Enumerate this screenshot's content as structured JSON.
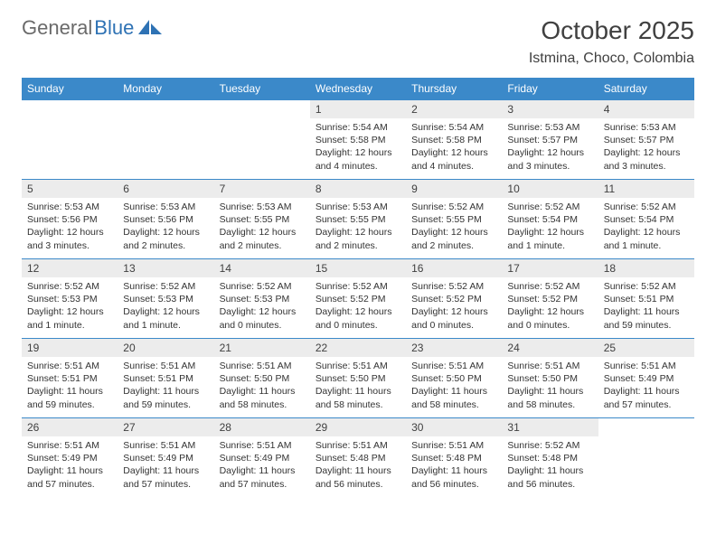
{
  "logo": {
    "text1": "General",
    "text2": "Blue"
  },
  "title": "October 2025",
  "location": "Istmina, Choco, Colombia",
  "colors": {
    "header_bg": "#3b89c9",
    "header_text": "#ffffff",
    "daynum_bg": "#ececec",
    "row_border": "#3b89c9",
    "text": "#333333",
    "title_text": "#404040",
    "logo_gray": "#6a6a6a",
    "logo_blue": "#2e72b4"
  },
  "weekdays": [
    "Sunday",
    "Monday",
    "Tuesday",
    "Wednesday",
    "Thursday",
    "Friday",
    "Saturday"
  ],
  "weeks": [
    [
      {
        "n": "",
        "sunrise": "",
        "sunset": "",
        "daylight": ""
      },
      {
        "n": "",
        "sunrise": "",
        "sunset": "",
        "daylight": ""
      },
      {
        "n": "",
        "sunrise": "",
        "sunset": "",
        "daylight": ""
      },
      {
        "n": "1",
        "sunrise": "Sunrise: 5:54 AM",
        "sunset": "Sunset: 5:58 PM",
        "daylight": "Daylight: 12 hours and 4 minutes."
      },
      {
        "n": "2",
        "sunrise": "Sunrise: 5:54 AM",
        "sunset": "Sunset: 5:58 PM",
        "daylight": "Daylight: 12 hours and 4 minutes."
      },
      {
        "n": "3",
        "sunrise": "Sunrise: 5:53 AM",
        "sunset": "Sunset: 5:57 PM",
        "daylight": "Daylight: 12 hours and 3 minutes."
      },
      {
        "n": "4",
        "sunrise": "Sunrise: 5:53 AM",
        "sunset": "Sunset: 5:57 PM",
        "daylight": "Daylight: 12 hours and 3 minutes."
      }
    ],
    [
      {
        "n": "5",
        "sunrise": "Sunrise: 5:53 AM",
        "sunset": "Sunset: 5:56 PM",
        "daylight": "Daylight: 12 hours and 3 minutes."
      },
      {
        "n": "6",
        "sunrise": "Sunrise: 5:53 AM",
        "sunset": "Sunset: 5:56 PM",
        "daylight": "Daylight: 12 hours and 2 minutes."
      },
      {
        "n": "7",
        "sunrise": "Sunrise: 5:53 AM",
        "sunset": "Sunset: 5:55 PM",
        "daylight": "Daylight: 12 hours and 2 minutes."
      },
      {
        "n": "8",
        "sunrise": "Sunrise: 5:53 AM",
        "sunset": "Sunset: 5:55 PM",
        "daylight": "Daylight: 12 hours and 2 minutes."
      },
      {
        "n": "9",
        "sunrise": "Sunrise: 5:52 AM",
        "sunset": "Sunset: 5:55 PM",
        "daylight": "Daylight: 12 hours and 2 minutes."
      },
      {
        "n": "10",
        "sunrise": "Sunrise: 5:52 AM",
        "sunset": "Sunset: 5:54 PM",
        "daylight": "Daylight: 12 hours and 1 minute."
      },
      {
        "n": "11",
        "sunrise": "Sunrise: 5:52 AM",
        "sunset": "Sunset: 5:54 PM",
        "daylight": "Daylight: 12 hours and 1 minute."
      }
    ],
    [
      {
        "n": "12",
        "sunrise": "Sunrise: 5:52 AM",
        "sunset": "Sunset: 5:53 PM",
        "daylight": "Daylight: 12 hours and 1 minute."
      },
      {
        "n": "13",
        "sunrise": "Sunrise: 5:52 AM",
        "sunset": "Sunset: 5:53 PM",
        "daylight": "Daylight: 12 hours and 1 minute."
      },
      {
        "n": "14",
        "sunrise": "Sunrise: 5:52 AM",
        "sunset": "Sunset: 5:53 PM",
        "daylight": "Daylight: 12 hours and 0 minutes."
      },
      {
        "n": "15",
        "sunrise": "Sunrise: 5:52 AM",
        "sunset": "Sunset: 5:52 PM",
        "daylight": "Daylight: 12 hours and 0 minutes."
      },
      {
        "n": "16",
        "sunrise": "Sunrise: 5:52 AM",
        "sunset": "Sunset: 5:52 PM",
        "daylight": "Daylight: 12 hours and 0 minutes."
      },
      {
        "n": "17",
        "sunrise": "Sunrise: 5:52 AM",
        "sunset": "Sunset: 5:52 PM",
        "daylight": "Daylight: 12 hours and 0 minutes."
      },
      {
        "n": "18",
        "sunrise": "Sunrise: 5:52 AM",
        "sunset": "Sunset: 5:51 PM",
        "daylight": "Daylight: 11 hours and 59 minutes."
      }
    ],
    [
      {
        "n": "19",
        "sunrise": "Sunrise: 5:51 AM",
        "sunset": "Sunset: 5:51 PM",
        "daylight": "Daylight: 11 hours and 59 minutes."
      },
      {
        "n": "20",
        "sunrise": "Sunrise: 5:51 AM",
        "sunset": "Sunset: 5:51 PM",
        "daylight": "Daylight: 11 hours and 59 minutes."
      },
      {
        "n": "21",
        "sunrise": "Sunrise: 5:51 AM",
        "sunset": "Sunset: 5:50 PM",
        "daylight": "Daylight: 11 hours and 58 minutes."
      },
      {
        "n": "22",
        "sunrise": "Sunrise: 5:51 AM",
        "sunset": "Sunset: 5:50 PM",
        "daylight": "Daylight: 11 hours and 58 minutes."
      },
      {
        "n": "23",
        "sunrise": "Sunrise: 5:51 AM",
        "sunset": "Sunset: 5:50 PM",
        "daylight": "Daylight: 11 hours and 58 minutes."
      },
      {
        "n": "24",
        "sunrise": "Sunrise: 5:51 AM",
        "sunset": "Sunset: 5:50 PM",
        "daylight": "Daylight: 11 hours and 58 minutes."
      },
      {
        "n": "25",
        "sunrise": "Sunrise: 5:51 AM",
        "sunset": "Sunset: 5:49 PM",
        "daylight": "Daylight: 11 hours and 57 minutes."
      }
    ],
    [
      {
        "n": "26",
        "sunrise": "Sunrise: 5:51 AM",
        "sunset": "Sunset: 5:49 PM",
        "daylight": "Daylight: 11 hours and 57 minutes."
      },
      {
        "n": "27",
        "sunrise": "Sunrise: 5:51 AM",
        "sunset": "Sunset: 5:49 PM",
        "daylight": "Daylight: 11 hours and 57 minutes."
      },
      {
        "n": "28",
        "sunrise": "Sunrise: 5:51 AM",
        "sunset": "Sunset: 5:49 PM",
        "daylight": "Daylight: 11 hours and 57 minutes."
      },
      {
        "n": "29",
        "sunrise": "Sunrise: 5:51 AM",
        "sunset": "Sunset: 5:48 PM",
        "daylight": "Daylight: 11 hours and 56 minutes."
      },
      {
        "n": "30",
        "sunrise": "Sunrise: 5:51 AM",
        "sunset": "Sunset: 5:48 PM",
        "daylight": "Daylight: 11 hours and 56 minutes."
      },
      {
        "n": "31",
        "sunrise": "Sunrise: 5:52 AM",
        "sunset": "Sunset: 5:48 PM",
        "daylight": "Daylight: 11 hours and 56 minutes."
      },
      {
        "n": "",
        "sunrise": "",
        "sunset": "",
        "daylight": ""
      }
    ]
  ]
}
